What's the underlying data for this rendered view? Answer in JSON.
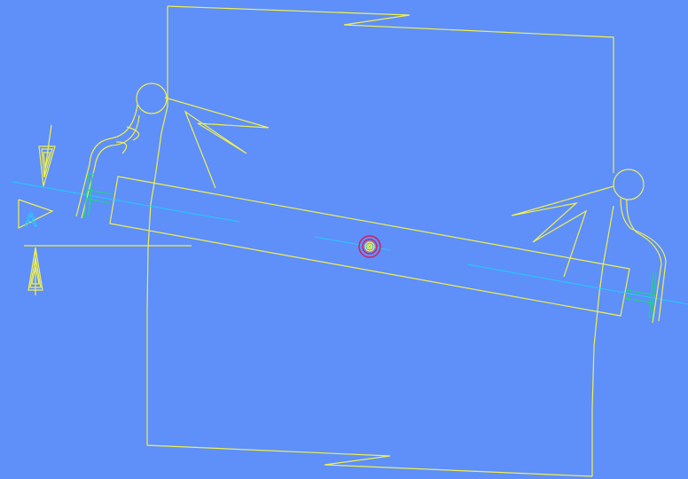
{
  "drawing": {
    "background_color": "#5f8ff8",
    "line_color": "#f0f050",
    "centerline_color": "#20d0ff",
    "marker_color": "#d02060",
    "accent_color": "#20d090",
    "section_label": "A"
  }
}
